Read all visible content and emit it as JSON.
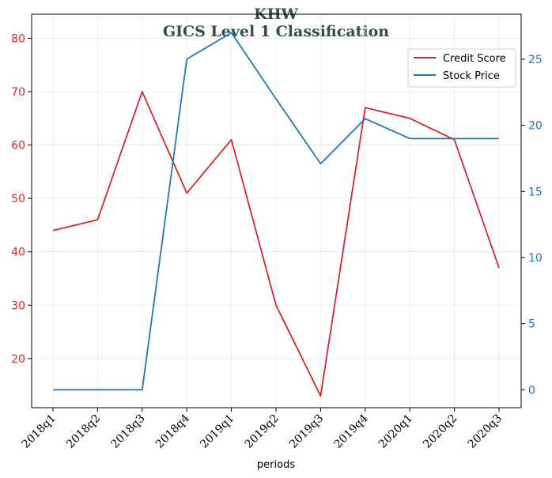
{
  "chart_data": {
    "type": "line",
    "title": "KHW",
    "subtitle": "GICS Level 1 Classification",
    "xlabel": "periods",
    "categories": [
      "2018q1",
      "2018q2",
      "2018q3",
      "2018q4",
      "2019q1",
      "2019q2",
      "2019q3",
      "2019q4",
      "2020q1",
      "2020q2",
      "2020q3"
    ],
    "series": [
      {
        "name": "Credit Score",
        "axis": "left",
        "color": "#d62728",
        "values": [
          44,
          46,
          70,
          51,
          61,
          30,
          13,
          67,
          65,
          61,
          37
        ]
      },
      {
        "name": "Stock Price",
        "axis": "right",
        "color": "#1f77b4",
        "values": [
          0,
          0,
          0,
          25,
          27,
          22,
          17.1,
          20.5,
          19,
          19,
          19
        ]
      }
    ],
    "left_axis": {
      "ylim": [
        10.8,
        84.5
      ],
      "ticks": [
        20,
        30,
        40,
        50,
        60,
        70,
        80
      ],
      "color": "#d62728"
    },
    "right_axis": {
      "ylim": [
        -1.35,
        28.4
      ],
      "ticks": [
        0,
        5,
        10,
        15,
        20,
        25
      ],
      "color": "#1f77b4"
    },
    "grid": true,
    "legend_position": "top-right"
  }
}
